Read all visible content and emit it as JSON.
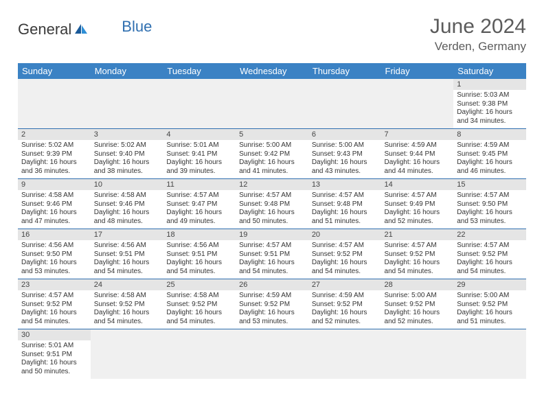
{
  "brand": {
    "general": "General",
    "blue": "Blue"
  },
  "title": {
    "month": "June 2024",
    "location": "Verden, Germany"
  },
  "header_bg": "#3b82c4",
  "accent_line": "#2f6fb0",
  "weekdays": [
    "Sunday",
    "Monday",
    "Tuesday",
    "Wednesday",
    "Thursday",
    "Friday",
    "Saturday"
  ],
  "weeks": [
    [
      null,
      null,
      null,
      null,
      null,
      null,
      {
        "n": "1",
        "sr": "Sunrise: 5:03 AM",
        "ss": "Sunset: 9:38 PM",
        "dl1": "Daylight: 16 hours",
        "dl2": "and 34 minutes."
      }
    ],
    [
      {
        "n": "2",
        "sr": "Sunrise: 5:02 AM",
        "ss": "Sunset: 9:39 PM",
        "dl1": "Daylight: 16 hours",
        "dl2": "and 36 minutes."
      },
      {
        "n": "3",
        "sr": "Sunrise: 5:02 AM",
        "ss": "Sunset: 9:40 PM",
        "dl1": "Daylight: 16 hours",
        "dl2": "and 38 minutes."
      },
      {
        "n": "4",
        "sr": "Sunrise: 5:01 AM",
        "ss": "Sunset: 9:41 PM",
        "dl1": "Daylight: 16 hours",
        "dl2": "and 39 minutes."
      },
      {
        "n": "5",
        "sr": "Sunrise: 5:00 AM",
        "ss": "Sunset: 9:42 PM",
        "dl1": "Daylight: 16 hours",
        "dl2": "and 41 minutes."
      },
      {
        "n": "6",
        "sr": "Sunrise: 5:00 AM",
        "ss": "Sunset: 9:43 PM",
        "dl1": "Daylight: 16 hours",
        "dl2": "and 43 minutes."
      },
      {
        "n": "7",
        "sr": "Sunrise: 4:59 AM",
        "ss": "Sunset: 9:44 PM",
        "dl1": "Daylight: 16 hours",
        "dl2": "and 44 minutes."
      },
      {
        "n": "8",
        "sr": "Sunrise: 4:59 AM",
        "ss": "Sunset: 9:45 PM",
        "dl1": "Daylight: 16 hours",
        "dl2": "and 46 minutes."
      }
    ],
    [
      {
        "n": "9",
        "sr": "Sunrise: 4:58 AM",
        "ss": "Sunset: 9:46 PM",
        "dl1": "Daylight: 16 hours",
        "dl2": "and 47 minutes."
      },
      {
        "n": "10",
        "sr": "Sunrise: 4:58 AM",
        "ss": "Sunset: 9:46 PM",
        "dl1": "Daylight: 16 hours",
        "dl2": "and 48 minutes."
      },
      {
        "n": "11",
        "sr": "Sunrise: 4:57 AM",
        "ss": "Sunset: 9:47 PM",
        "dl1": "Daylight: 16 hours",
        "dl2": "and 49 minutes."
      },
      {
        "n": "12",
        "sr": "Sunrise: 4:57 AM",
        "ss": "Sunset: 9:48 PM",
        "dl1": "Daylight: 16 hours",
        "dl2": "and 50 minutes."
      },
      {
        "n": "13",
        "sr": "Sunrise: 4:57 AM",
        "ss": "Sunset: 9:48 PM",
        "dl1": "Daylight: 16 hours",
        "dl2": "and 51 minutes."
      },
      {
        "n": "14",
        "sr": "Sunrise: 4:57 AM",
        "ss": "Sunset: 9:49 PM",
        "dl1": "Daylight: 16 hours",
        "dl2": "and 52 minutes."
      },
      {
        "n": "15",
        "sr": "Sunrise: 4:57 AM",
        "ss": "Sunset: 9:50 PM",
        "dl1": "Daylight: 16 hours",
        "dl2": "and 53 minutes."
      }
    ],
    [
      {
        "n": "16",
        "sr": "Sunrise: 4:56 AM",
        "ss": "Sunset: 9:50 PM",
        "dl1": "Daylight: 16 hours",
        "dl2": "and 53 minutes."
      },
      {
        "n": "17",
        "sr": "Sunrise: 4:56 AM",
        "ss": "Sunset: 9:51 PM",
        "dl1": "Daylight: 16 hours",
        "dl2": "and 54 minutes."
      },
      {
        "n": "18",
        "sr": "Sunrise: 4:56 AM",
        "ss": "Sunset: 9:51 PM",
        "dl1": "Daylight: 16 hours",
        "dl2": "and 54 minutes."
      },
      {
        "n": "19",
        "sr": "Sunrise: 4:57 AM",
        "ss": "Sunset: 9:51 PM",
        "dl1": "Daylight: 16 hours",
        "dl2": "and 54 minutes."
      },
      {
        "n": "20",
        "sr": "Sunrise: 4:57 AM",
        "ss": "Sunset: 9:52 PM",
        "dl1": "Daylight: 16 hours",
        "dl2": "and 54 minutes."
      },
      {
        "n": "21",
        "sr": "Sunrise: 4:57 AM",
        "ss": "Sunset: 9:52 PM",
        "dl1": "Daylight: 16 hours",
        "dl2": "and 54 minutes."
      },
      {
        "n": "22",
        "sr": "Sunrise: 4:57 AM",
        "ss": "Sunset: 9:52 PM",
        "dl1": "Daylight: 16 hours",
        "dl2": "and 54 minutes."
      }
    ],
    [
      {
        "n": "23",
        "sr": "Sunrise: 4:57 AM",
        "ss": "Sunset: 9:52 PM",
        "dl1": "Daylight: 16 hours",
        "dl2": "and 54 minutes."
      },
      {
        "n": "24",
        "sr": "Sunrise: 4:58 AM",
        "ss": "Sunset: 9:52 PM",
        "dl1": "Daylight: 16 hours",
        "dl2": "and 54 minutes."
      },
      {
        "n": "25",
        "sr": "Sunrise: 4:58 AM",
        "ss": "Sunset: 9:52 PM",
        "dl1": "Daylight: 16 hours",
        "dl2": "and 54 minutes."
      },
      {
        "n": "26",
        "sr": "Sunrise: 4:59 AM",
        "ss": "Sunset: 9:52 PM",
        "dl1": "Daylight: 16 hours",
        "dl2": "and 53 minutes."
      },
      {
        "n": "27",
        "sr": "Sunrise: 4:59 AM",
        "ss": "Sunset: 9:52 PM",
        "dl1": "Daylight: 16 hours",
        "dl2": "and 52 minutes."
      },
      {
        "n": "28",
        "sr": "Sunrise: 5:00 AM",
        "ss": "Sunset: 9:52 PM",
        "dl1": "Daylight: 16 hours",
        "dl2": "and 52 minutes."
      },
      {
        "n": "29",
        "sr": "Sunrise: 5:00 AM",
        "ss": "Sunset: 9:52 PM",
        "dl1": "Daylight: 16 hours",
        "dl2": "and 51 minutes."
      }
    ],
    [
      {
        "n": "30",
        "sr": "Sunrise: 5:01 AM",
        "ss": "Sunset: 9:51 PM",
        "dl1": "Daylight: 16 hours",
        "dl2": "and 50 minutes."
      },
      null,
      null,
      null,
      null,
      null,
      null
    ]
  ]
}
